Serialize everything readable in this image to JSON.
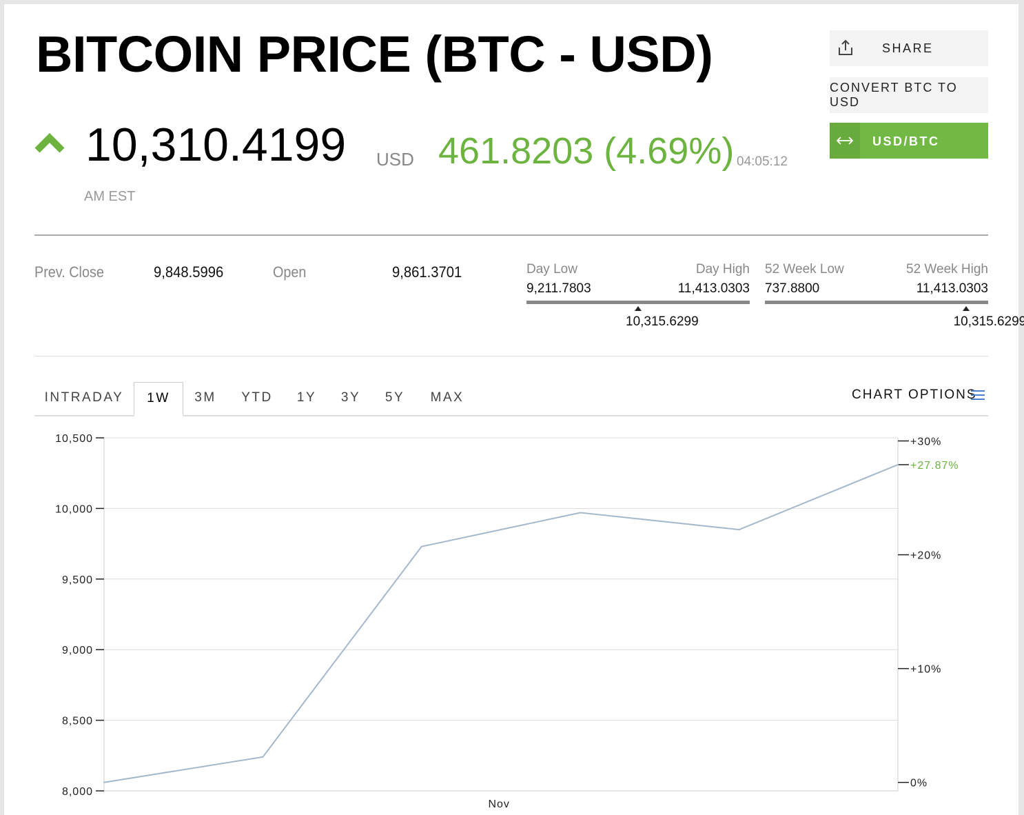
{
  "header": {
    "title": "BITCOIN PRICE (BTC - USD)",
    "price": "10,310.4199",
    "price_unit": "USD",
    "change": "461.8203 (4.69%)",
    "time": "04:05:12",
    "timezone": "AM EST",
    "trend_icon": "chevron-up-icon",
    "accent_color": "#6cb33f"
  },
  "actions": {
    "share": "SHARE",
    "convert": "CONVERT BTC TO USD",
    "currency_toggle": "USD/BTC"
  },
  "stats": {
    "prev_close_label": "Prev. Close",
    "prev_close": "9,848.5996",
    "open_label": "Open",
    "open": "9,861.3701",
    "day_range": {
      "low_label": "Day Low",
      "low": "9,211.7803",
      "high_label": "Day High",
      "high": "11,413.0303",
      "current": "10,315.6299",
      "position": 0.5
    },
    "week52_range": {
      "low_label": "52 Week Low",
      "low": "737.8800",
      "high_label": "52 Week High",
      "high": "11,413.0303",
      "current": "10,315.6299",
      "position": 0.9
    }
  },
  "tabs": [
    {
      "label": "INTRADAY"
    },
    {
      "label": "1W",
      "active": true
    },
    {
      "label": "3M"
    },
    {
      "label": "YTD"
    },
    {
      "label": "1Y"
    },
    {
      "label": "3Y"
    },
    {
      "label": "5Y"
    },
    {
      "label": "MAX"
    }
  ],
  "chart_options_label": "CHART OPTIONS",
  "chart_data": {
    "type": "line",
    "x_labels": [
      "Nov"
    ],
    "x_label_index": 3,
    "values": [
      8060,
      8240,
      9730,
      9970,
      9850,
      10310
    ],
    "ylim": [
      8000,
      10500
    ],
    "yticks": [
      8000,
      8500,
      9000,
      9500,
      10000,
      10500
    ],
    "ytick_labels": [
      "8,000",
      "8,500",
      "9,000",
      "9,500",
      "10,000",
      "10,500"
    ],
    "right_axis": {
      "ticks": [
        0,
        10,
        20,
        30
      ],
      "tick_labels": [
        "0%",
        "+10%",
        "+20%",
        "+30%"
      ],
      "base_value": 8060,
      "current_label": "+27.87%"
    },
    "line_color": "#a3b8cc",
    "grid": true,
    "xlabel": "",
    "ylabel": ""
  }
}
